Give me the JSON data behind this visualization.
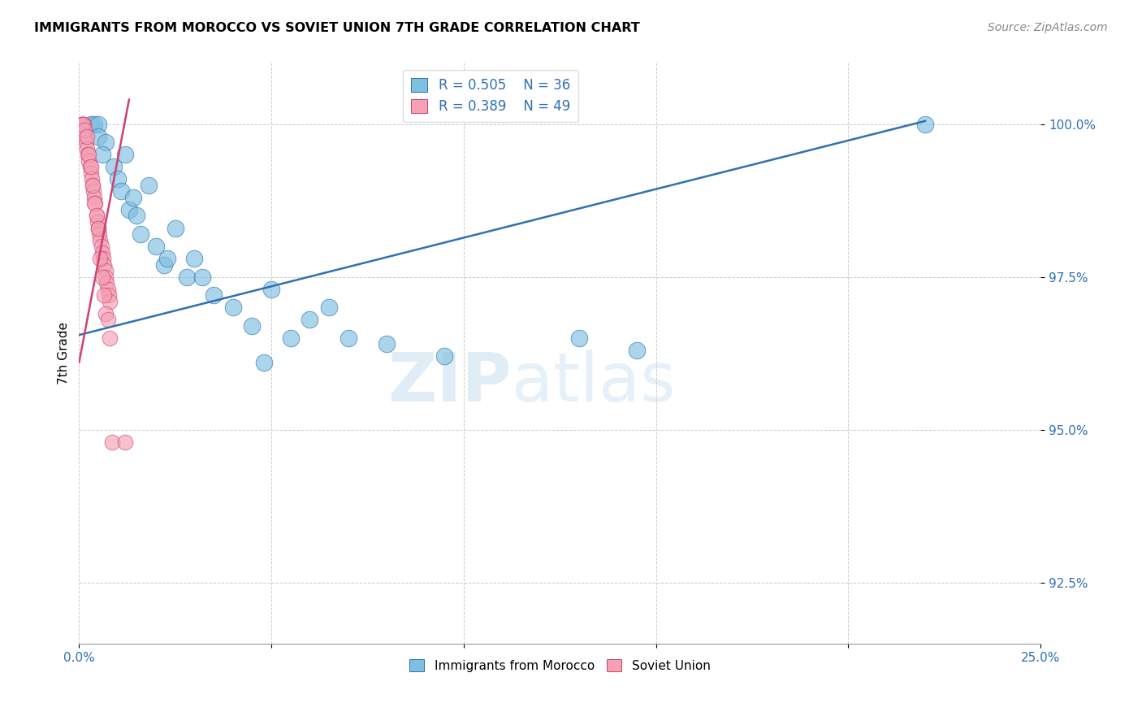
{
  "title": "IMMIGRANTS FROM MOROCCO VS SOVIET UNION 7TH GRADE CORRELATION CHART",
  "source": "Source: ZipAtlas.com",
  "ylabel": "7th Grade",
  "yticks": [
    92.5,
    95.0,
    97.5,
    100.0
  ],
  "ytick_labels": [
    "92.5%",
    "95.0%",
    "97.5%",
    "100.0%"
  ],
  "xmin": 0.0,
  "xmax": 25.0,
  "ymin": 91.5,
  "ymax": 101.0,
  "watermark_part1": "ZIP",
  "watermark_part2": "atlas",
  "legend_r_morocco": "R = 0.505",
  "legend_n_morocco": "N = 36",
  "legend_r_soviet": "R = 0.389",
  "legend_n_soviet": "N = 49",
  "color_morocco": "#7fbfdf",
  "color_soviet": "#f4a0b5",
  "color_trendline_morocco": "#3070b3",
  "color_trendline_soviet": "#d04070",
  "color_axis_labels": "#3070b3",
  "color_ytick_labels": "#3070b3",
  "morocco_x": [
    0.3,
    0.4,
    0.5,
    0.5,
    0.7,
    0.9,
    1.0,
    1.1,
    1.2,
    1.3,
    1.5,
    1.6,
    1.8,
    2.0,
    2.2,
    2.5,
    2.8,
    3.2,
    3.5,
    4.0,
    4.5,
    5.0,
    5.5,
    6.0,
    6.5,
    7.0,
    8.0,
    9.5,
    13.0,
    14.5,
    22.0,
    0.6,
    1.4,
    3.0,
    4.8,
    2.3
  ],
  "morocco_y": [
    100.0,
    100.0,
    100.0,
    99.8,
    99.7,
    99.3,
    99.1,
    98.9,
    99.5,
    98.6,
    98.5,
    98.2,
    99.0,
    98.0,
    97.7,
    98.3,
    97.5,
    97.5,
    97.2,
    97.0,
    96.7,
    97.3,
    96.5,
    96.8,
    97.0,
    96.5,
    96.4,
    96.2,
    96.5,
    96.3,
    100.0,
    99.5,
    98.8,
    97.8,
    96.1,
    97.8
  ],
  "soviet_x": [
    0.05,
    0.08,
    0.1,
    0.12,
    0.15,
    0.18,
    0.2,
    0.22,
    0.25,
    0.28,
    0.3,
    0.32,
    0.35,
    0.38,
    0.4,
    0.42,
    0.45,
    0.48,
    0.5,
    0.52,
    0.55,
    0.58,
    0.6,
    0.62,
    0.65,
    0.68,
    0.7,
    0.72,
    0.75,
    0.78,
    0.8,
    0.05,
    0.1,
    0.15,
    0.2,
    0.25,
    0.3,
    0.35,
    0.4,
    0.45,
    0.5,
    0.55,
    0.6,
    0.65,
    0.7,
    0.75,
    0.8,
    0.85,
    1.2
  ],
  "soviet_y": [
    100.0,
    100.0,
    100.0,
    100.0,
    99.8,
    99.7,
    99.6,
    99.5,
    99.4,
    99.3,
    99.2,
    99.1,
    99.0,
    98.9,
    98.8,
    98.7,
    98.5,
    98.4,
    98.3,
    98.2,
    98.1,
    98.0,
    97.9,
    97.8,
    97.7,
    97.6,
    97.5,
    97.4,
    97.3,
    97.2,
    97.1,
    100.0,
    100.0,
    99.9,
    99.8,
    99.5,
    99.3,
    99.0,
    98.7,
    98.5,
    98.3,
    97.8,
    97.5,
    97.2,
    96.9,
    96.8,
    96.5,
    94.8,
    94.8
  ],
  "morocco_trend_x": [
    0.0,
    22.0
  ],
  "morocco_trend_y": [
    96.55,
    100.05
  ],
  "soviet_trend_x": [
    0.0,
    1.3
  ],
  "soviet_trend_y": [
    96.1,
    100.4
  ],
  "xtick_positions": [
    0,
    5,
    10,
    15,
    20,
    25
  ],
  "title_fontsize": 11.5,
  "source_fontsize": 10,
  "tick_fontsize": 11,
  "ylabel_fontsize": 11
}
